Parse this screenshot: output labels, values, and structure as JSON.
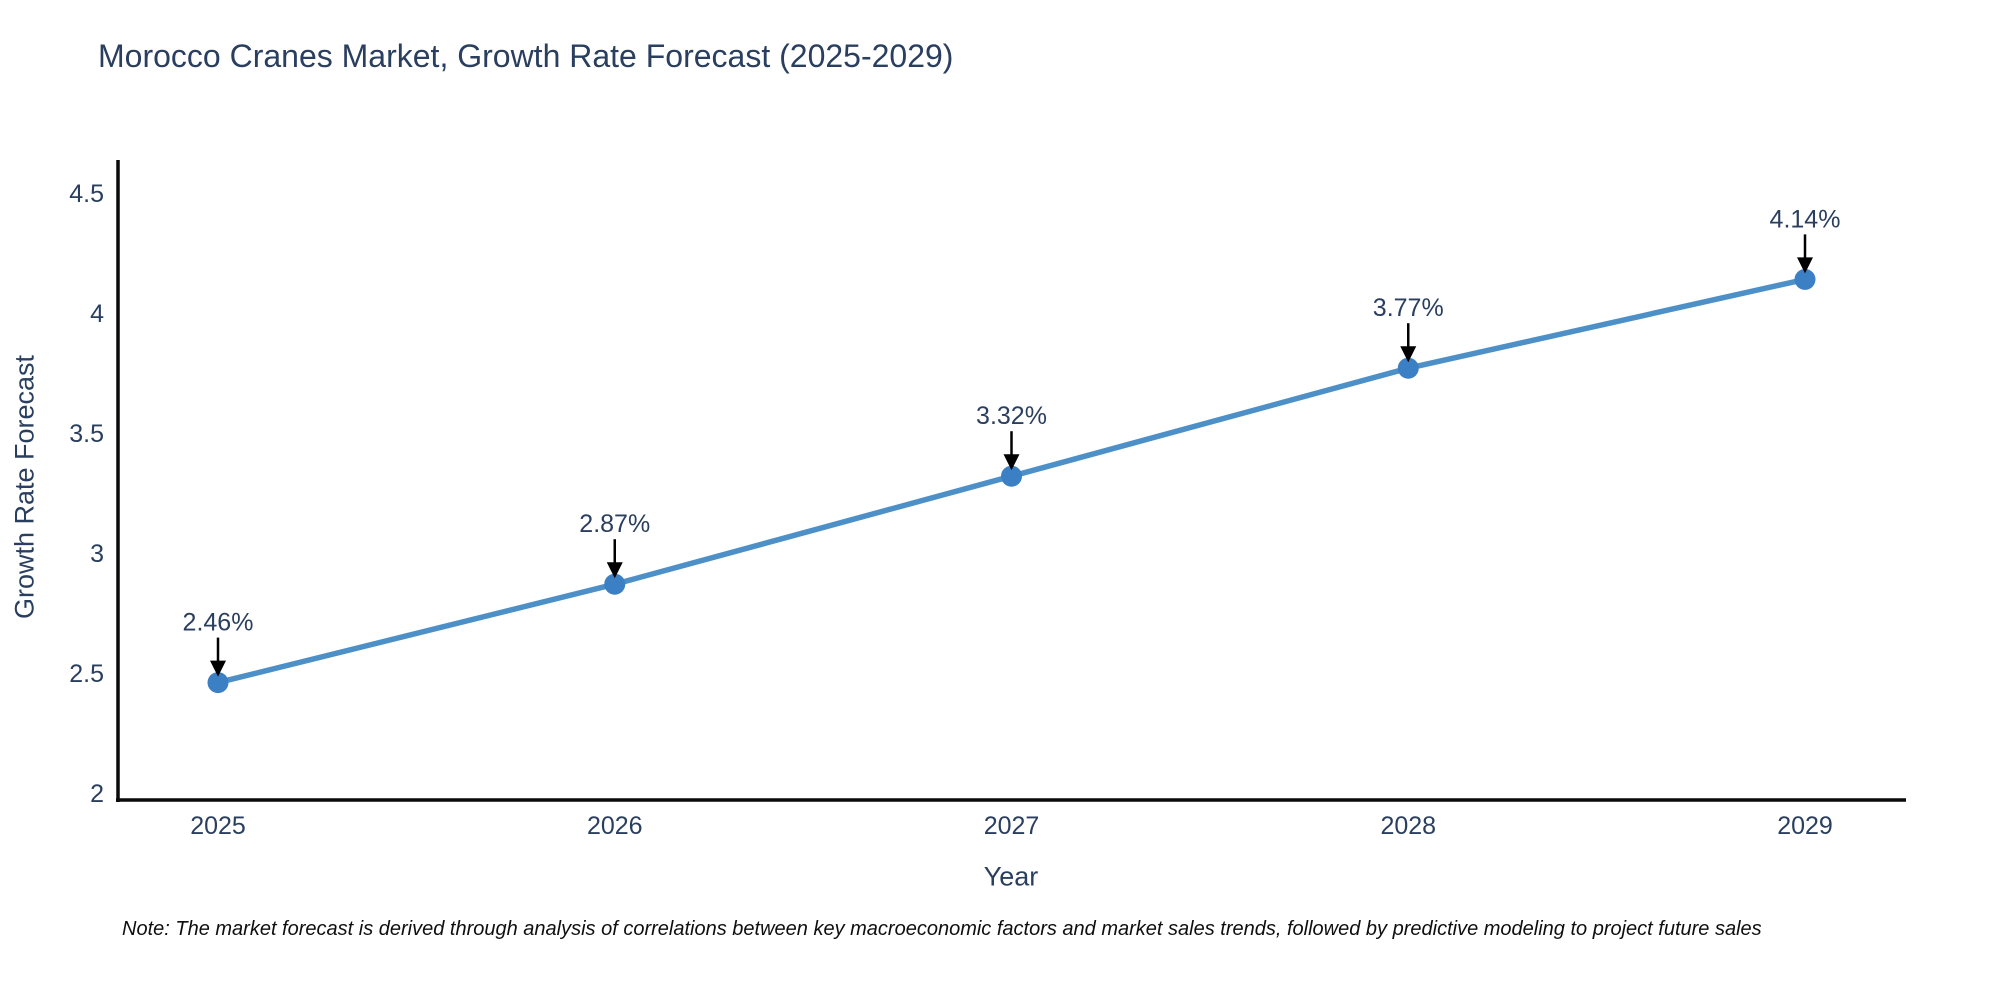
{
  "note": "Note: The market forecast is derived through analysis of correlations between key macroeconomic factors and market sales trends, followed by predictive modeling to project future sales",
  "colors": {
    "background": "#ffffff",
    "title": "#2a3f5f",
    "tick": "#2a3f5f",
    "axis": "#0a0a0a",
    "line": "#4d90c8",
    "marker": "#3b7fc4",
    "annotation_arrow": "#000000",
    "annotation_text": "#2a3f5f",
    "note": "#0f0f0f"
  },
  "chart_data": {
    "type": "line",
    "title": "Morocco Cranes Market, Growth Rate Forecast (2025-2029)",
    "xlabel": "Year",
    "ylabel": "Growth Rate Forecast",
    "x": [
      2025,
      2026,
      2027,
      2028,
      2029
    ],
    "values": [
      2.46,
      2.87,
      3.32,
      3.77,
      4.14
    ],
    "point_labels": [
      "2.46%",
      "2.87%",
      "3.32%",
      "3.77%",
      "4.14%"
    ],
    "x_ticks": [
      "2025",
      "2026",
      "2027",
      "2028",
      "2029"
    ],
    "y_ticks": [
      2,
      2.5,
      3,
      3.5,
      4,
      4.5
    ],
    "ylim": [
      1.97,
      4.67
    ],
    "grid": false,
    "legend": "none",
    "marker": "circle",
    "annotations_have_arrows": true
  }
}
